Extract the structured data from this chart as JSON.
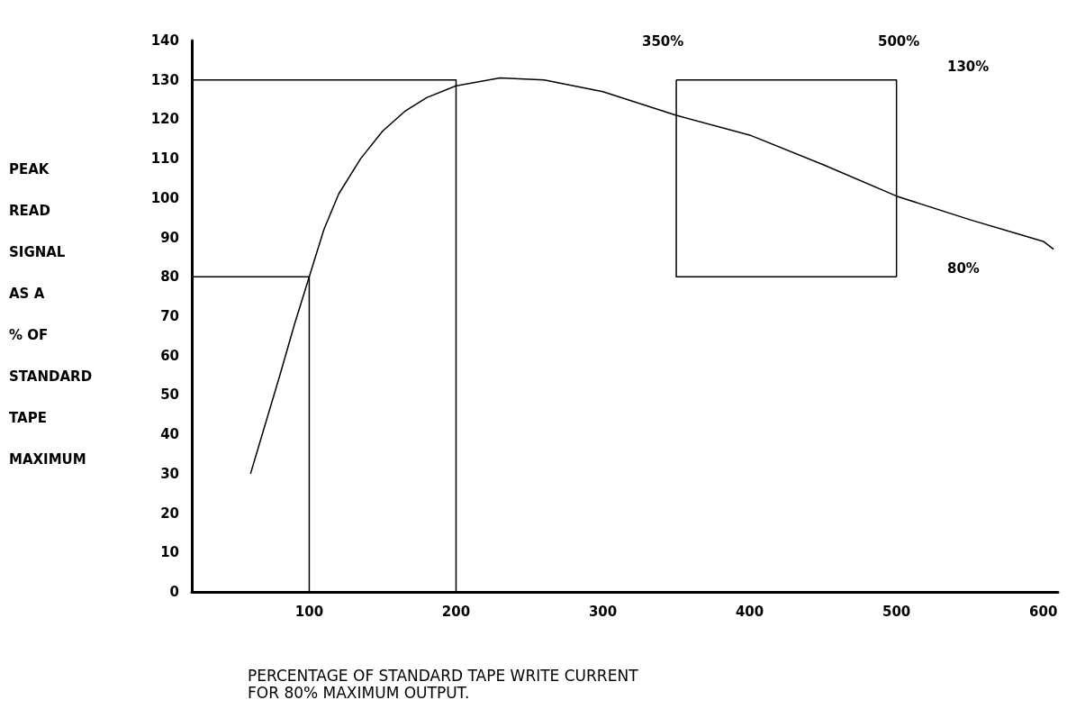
{
  "chart_data": {
    "type": "line",
    "xlabel": "PERCENTAGE OF STANDARD TAPE WRITE CURRENT\nFOR 80% MAXIMUM OUTPUT.",
    "ylabel": "PEAK\nREAD\nSIGNAL\nAS A\n% OF\nSTANDARD\nTAPE\nMAXIMUM",
    "xlim": [
      20,
      610
    ],
    "xticks": [
      100,
      200,
      300,
      400,
      500,
      600
    ],
    "ylim": [
      0,
      140
    ],
    "yticks": [
      0,
      10,
      20,
      30,
      40,
      50,
      60,
      70,
      80,
      90,
      100,
      110,
      120,
      130,
      140
    ],
    "grid": false,
    "marker": "none",
    "line_style": "solid",
    "series": [
      {
        "color": "#000000",
        "x": [
          60,
          80,
          90,
          100,
          110,
          120,
          135,
          150,
          165,
          180,
          200,
          230,
          260,
          300,
          350,
          400,
          450,
          500,
          550,
          600,
          607
        ],
        "values": [
          30,
          55,
          68,
          80,
          92,
          101,
          110,
          117,
          122,
          125.5,
          128.5,
          130.5,
          130,
          127,
          121,
          116,
          108.5,
          100.5,
          94.5,
          89,
          87
        ]
      },
      {
        "color": "#000000",
        "x": [
          20,
          200,
          200
        ],
        "values": [
          130,
          130,
          0
        ]
      },
      {
        "color": "#000000",
        "x": [
          20,
          100,
          100
        ],
        "values": [
          80,
          80,
          0
        ]
      },
      {
        "color": "#000000",
        "x": [
          350,
          500,
          500
        ],
        "values": [
          130,
          130,
          80
        ]
      },
      {
        "color": "#000000",
        "x": [
          350,
          350,
          500
        ],
        "values": [
          130,
          80,
          80
        ]
      }
    ],
    "annotations": [
      "350%",
      "500%",
      "130%",
      "80%"
    ]
  }
}
